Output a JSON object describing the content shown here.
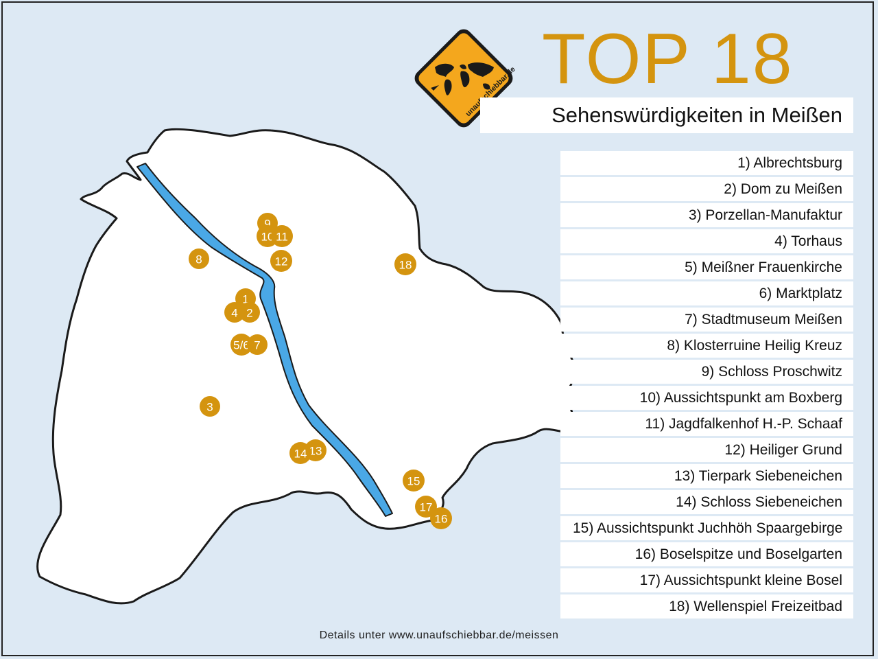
{
  "title": "TOP 18",
  "subtitle": "Sehenswürdigkeiten in Meißen",
  "logo": {
    "text": "unaufschiebbar.de",
    "icon": "world-map-warning-sign-icon",
    "accent": "#f4a71d"
  },
  "colors": {
    "background": "#dde9f4",
    "land": "#ffffff",
    "river": "#4aa8e6",
    "marker": "#d4940f",
    "title": "#d4940f"
  },
  "legend": [
    "1) Albrechtsburg",
    "2) Dom zu Meißen",
    "3) Porzellan-Manufaktur",
    "4) Torhaus",
    "5) Meißner Frauenkirche",
    "6) Marktplatz",
    "7) Stadtmuseum Meißen",
    "8) Klosterruine Heilig Kreuz",
    "9) Schloss Proschwitz",
    "10) Aussichtspunkt am Boxberg",
    "11) Jagdfalkenhof H.-P. Schaaf",
    "12) Heiliger Grund",
    "13) Tierpark Siebeneichen",
    "14) Schloss Siebeneichen",
    "15) Aussichtspunkt Juchhöh Spaargebirge",
    "16) Boselspitze und Boselgarten",
    "17) Aussichtspunkt kleine Bosel",
    "18) Wellenspiel Freizeitbad"
  ],
  "markers": [
    "1",
    "2",
    "4",
    "5/6",
    "7",
    "3",
    "8",
    "9",
    "10",
    "11",
    "12",
    "13",
    "14",
    "15",
    "16",
    "17",
    "18"
  ],
  "footer": "Details unter www.unaufschiebbar.de/meissen"
}
